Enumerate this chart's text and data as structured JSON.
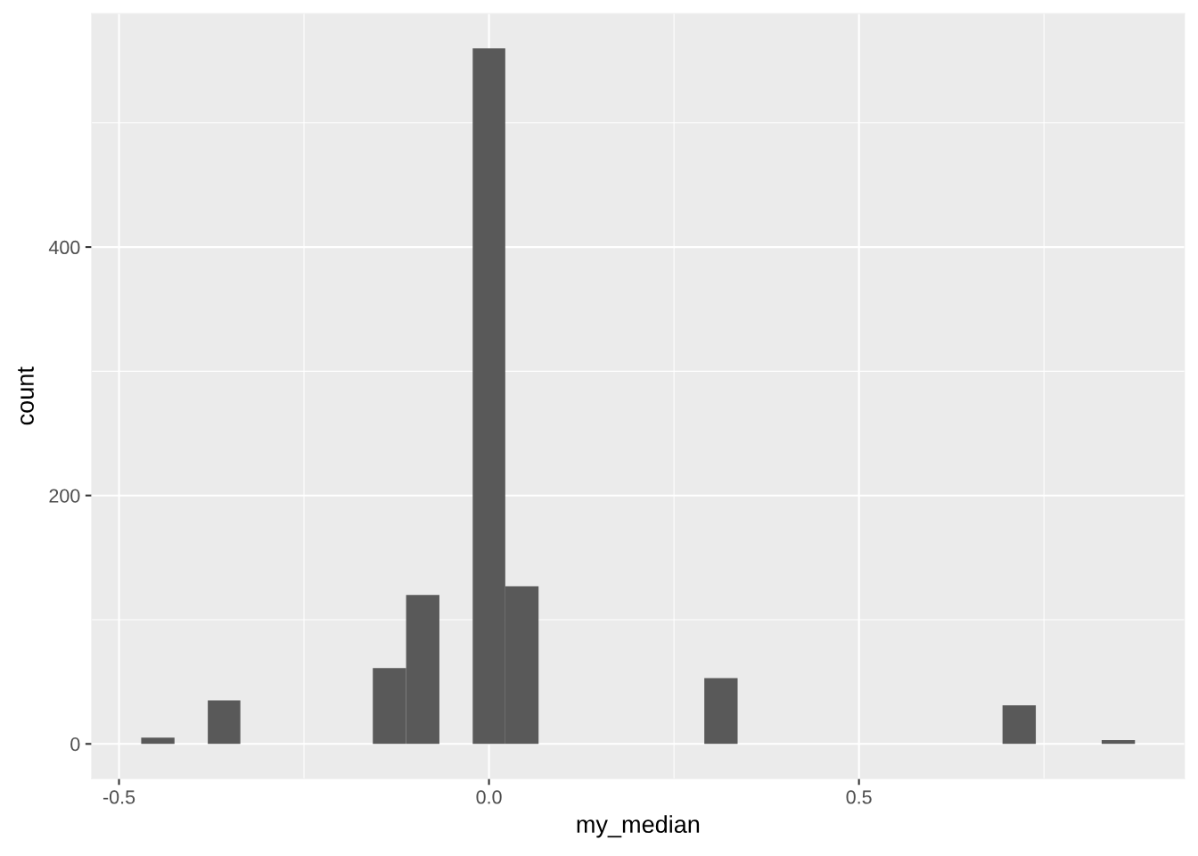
{
  "chart_data": {
    "type": "histogram",
    "bins": [
      -0.47,
      -0.425,
      -0.38,
      -0.336,
      -0.157,
      -0.112,
      -0.067,
      -0.022,
      0.022,
      0.067,
      0.291,
      0.336,
      0.694,
      0.739,
      0.828,
      0.873
    ],
    "values": [
      5,
      0,
      35,
      0,
      61,
      120,
      0,
      560,
      127,
      0,
      53,
      0,
      31,
      0,
      3
    ],
    "color": "#595959",
    "xlabel": "my_median",
    "ylabel": "count",
    "xlim": [
      -0.537,
      0.94
    ],
    "xticks": [
      {
        "value": -0.5,
        "label": "-0.5"
      },
      {
        "value": 0.0,
        "label": "0.0"
      },
      {
        "value": 0.5,
        "label": "0.5"
      }
    ],
    "ylim": [
      -28,
      588
    ],
    "yticks": [
      0,
      200,
      400
    ],
    "grid": true
  }
}
